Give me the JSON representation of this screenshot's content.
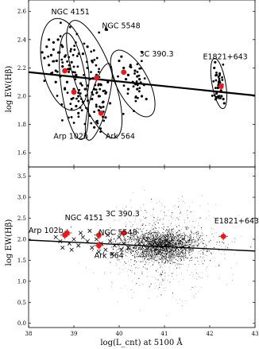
{
  "chart_data": [
    {
      "type": "scatter",
      "title": "",
      "ylabel": "log EW(Hβ)",
      "xlim": [
        38,
        43
      ],
      "ylim": [
        1.5,
        2.68
      ],
      "yticks": [
        "1.6",
        "1.8",
        "2.0",
        "2.2",
        "2.4",
        "2.6"
      ],
      "grid": false,
      "annotations": [
        {
          "text": "NGC 4151",
          "x": 38.5,
          "y": 2.58
        },
        {
          "text": "NGC 5548",
          "x": 39.62,
          "y": 2.48
        },
        {
          "text": "3C 390.3",
          "x": 40.45,
          "y": 2.28
        },
        {
          "text": "E1821+643",
          "x": 41.85,
          "y": 2.26
        },
        {
          "text": "Arp 102b",
          "x": 38.55,
          "y": 1.7
        },
        {
          "text": "Ark 564",
          "x": 39.7,
          "y": 1.7
        }
      ],
      "regression_line": {
        "x": [
          38,
          43
        ],
        "y": [
          2.17,
          2.005
        ]
      },
      "objects": [
        {
          "name": "NGC 4151",
          "mean": [
            38.8,
            2.18
          ],
          "ellipse": {
            "cx": 38.8,
            "cy": 2.225,
            "rx": 0.5,
            "ry": 0.33,
            "angle_deg": -12
          }
        },
        {
          "name": "NGC 5548",
          "mean": [
            39.5,
            2.13
          ],
          "ellipse": {
            "cx": 39.45,
            "cy": 2.12,
            "rx": 0.42,
            "ry": 0.44,
            "angle_deg": -20
          }
        },
        {
          "name": "Arp 102b",
          "mean": [
            39.0,
            2.03
          ],
          "ellipse": {
            "cx": 39.0,
            "cy": 2.07,
            "rx": 0.28,
            "ry": 0.38,
            "angle_deg": -8
          }
        },
        {
          "name": "Ark 564",
          "mean": [
            39.6,
            1.88
          ],
          "ellipse": {
            "cx": 39.55,
            "cy": 1.96,
            "rx": 0.2,
            "ry": 0.28,
            "angle_deg": 15
          }
        },
        {
          "name": "3C 390.3",
          "mean": [
            40.1,
            2.17
          ],
          "ellipse": {
            "cx": 40.3,
            "cy": 2.09,
            "rx": 0.35,
            "ry": 0.26,
            "angle_deg": -28
          }
        },
        {
          "name": "E1821+643",
          "mean": [
            42.25,
            2.07
          ],
          "ellipse": {
            "cx": 42.2,
            "cy": 2.09,
            "rx": 0.15,
            "ry": 0.18,
            "angle_deg": -10
          }
        }
      ],
      "series": [
        {
          "values_description": "",
          "points": [
            [
              38.3,
              2.31
            ],
            [
              38.35,
              2.27
            ],
            [
              38.4,
              2.35
            ],
            [
              38.45,
              2.22
            ],
            [
              38.5,
              2.29
            ],
            [
              38.55,
              2.38
            ],
            [
              38.6,
              2.18
            ],
            [
              38.62,
              2.25
            ],
            [
              38.68,
              2.31
            ],
            [
              38.7,
              2.14
            ],
            [
              38.75,
              2.21
            ],
            [
              38.8,
              2.28
            ],
            [
              38.85,
              2.1
            ],
            [
              38.9,
              2.19
            ],
            [
              38.95,
              2.24
            ],
            [
              39.0,
              2.05
            ],
            [
              39.05,
              2.15
            ],
            [
              39.1,
              2.0
            ],
            [
              39.15,
              2.09
            ],
            [
              39.2,
              1.96
            ],
            [
              38.45,
              2.4
            ],
            [
              38.55,
              2.33
            ],
            [
              38.65,
              2.4
            ],
            [
              38.75,
              2.35
            ],
            [
              38.5,
              2.16
            ],
            [
              38.6,
              2.1
            ],
            [
              38.8,
              2.05
            ],
            [
              38.95,
              1.98
            ],
            [
              39.05,
              1.93
            ],
            [
              39.1,
              1.88
            ],
            [
              39.2,
              2.3
            ],
            [
              39.3,
              2.2
            ],
            [
              39.4,
              2.25
            ],
            [
              39.5,
              2.15
            ],
            [
              39.6,
              2.08
            ],
            [
              39.3,
              2.35
            ],
            [
              39.45,
              2.05
            ],
            [
              39.55,
              2.0
            ],
            [
              39.6,
              1.92
            ],
            [
              39.7,
              1.85
            ],
            [
              39.65,
              1.96
            ],
            [
              39.5,
              1.82
            ],
            [
              39.45,
              1.78
            ],
            [
              39.55,
              1.9
            ],
            [
              39.7,
              2.02
            ],
            [
              39.8,
              1.95
            ],
            [
              39.35,
              2.12
            ],
            [
              39.25,
              2.05
            ],
            [
              39.75,
              2.1
            ],
            [
              39.4,
              1.98
            ],
            [
              40.0,
              2.25
            ],
            [
              40.1,
              2.2
            ],
            [
              40.2,
              2.15
            ],
            [
              40.3,
              2.1
            ],
            [
              40.4,
              2.05
            ],
            [
              40.5,
              2.0
            ],
            [
              40.55,
              2.08
            ],
            [
              40.25,
              2.22
            ],
            [
              40.15,
              2.12
            ],
            [
              40.35,
              2.18
            ],
            [
              40.45,
              2.12
            ],
            [
              40.6,
              1.98
            ],
            [
              40.05,
              2.28
            ],
            [
              40.2,
              2.05
            ],
            [
              40.4,
              2.14
            ],
            [
              42.1,
              2.2
            ],
            [
              42.15,
              2.15
            ],
            [
              42.2,
              2.1
            ],
            [
              42.25,
              2.04
            ],
            [
              42.3,
              1.98
            ],
            [
              42.15,
              2.02
            ],
            [
              42.22,
              2.16
            ],
            [
              42.28,
              2.08
            ],
            [
              42.12,
              2.24
            ],
            [
              42.32,
              1.95
            ],
            [
              42.18,
              2.06
            ],
            [
              42.26,
              2.0
            ]
          ]
        }
      ]
    },
    {
      "type": "scatter",
      "title": "",
      "xlabel": "log(L_cnt) at 5100 Å",
      "ylabel": "log EW(Hβ)",
      "xlim": [
        38,
        43
      ],
      "ylim": [
        -0.1,
        3.72
      ],
      "xticks": [
        "38",
        "39",
        "40",
        "41",
        "42",
        "43"
      ],
      "yticks": [
        "0.0",
        "0.5",
        "1.0",
        "1.5",
        "2.0",
        "2.5",
        "3.0",
        "3.5"
      ],
      "grid": false,
      "annotations": [
        {
          "text": "Arp 102b",
          "x": 38.0,
          "y": 2.15
        },
        {
          "text": "NGC 4151",
          "x": 38.8,
          "y": 2.45
        },
        {
          "text": "3C 390.3",
          "x": 39.7,
          "y": 2.55
        },
        {
          "text": "NGC 5548",
          "x": 39.55,
          "y": 2.1
        },
        {
          "text": "Ark 564",
          "x": 39.45,
          "y": 1.55
        },
        {
          "text": "E1821+643",
          "x": 42.1,
          "y": 2.38
        }
      ],
      "regression_line": {
        "x": [
          38,
          43
        ],
        "y": [
          1.98,
          1.72
        ]
      },
      "series": [
        {
          "name": "",
          "marker": "x",
          "points": [
            [
              38.6,
              2.05
            ],
            [
              38.7,
              1.95
            ],
            [
              38.8,
              2.1
            ],
            [
              38.9,
              1.9
            ],
            [
              39.0,
              2.0
            ],
            [
              39.1,
              1.85
            ],
            [
              39.2,
              2.05
            ],
            [
              39.3,
              1.95
            ],
            [
              39.4,
              1.8
            ],
            [
              39.5,
              2.0
            ],
            [
              39.6,
              1.9
            ],
            [
              39.7,
              1.75
            ],
            [
              39.8,
              1.95
            ],
            [
              39.9,
              1.85
            ],
            [
              40.0,
              2.05
            ],
            [
              40.1,
              1.9
            ],
            [
              40.2,
              1.8
            ],
            [
              38.75,
              1.8
            ],
            [
              38.95,
              1.75
            ],
            [
              39.15,
              2.15
            ],
            [
              39.35,
              2.2
            ],
            [
              39.55,
              1.7
            ],
            [
              39.75,
              2.1
            ],
            [
              39.85,
              1.65
            ],
            [
              40.05,
              1.75
            ]
          ]
        },
        {
          "name": "",
          "marker": "point",
          "description": "dense cloud centred near log L = 41.0, log EW = 1.85"
        }
      ],
      "means": [
        {
          "name": "Arp 102b",
          "x": 38.8,
          "y": 2.1
        },
        {
          "name": "NGC 4151",
          "x": 38.85,
          "y": 2.15
        },
        {
          "name": "NGC 5548",
          "x": 39.55,
          "y": 2.1
        },
        {
          "name": "3C 390.3",
          "x": 40.1,
          "y": 2.15
        },
        {
          "name": "Ark 564",
          "x": 39.55,
          "y": 1.85
        },
        {
          "name": "E1821+643",
          "x": 42.3,
          "y": 2.07
        }
      ]
    }
  ]
}
